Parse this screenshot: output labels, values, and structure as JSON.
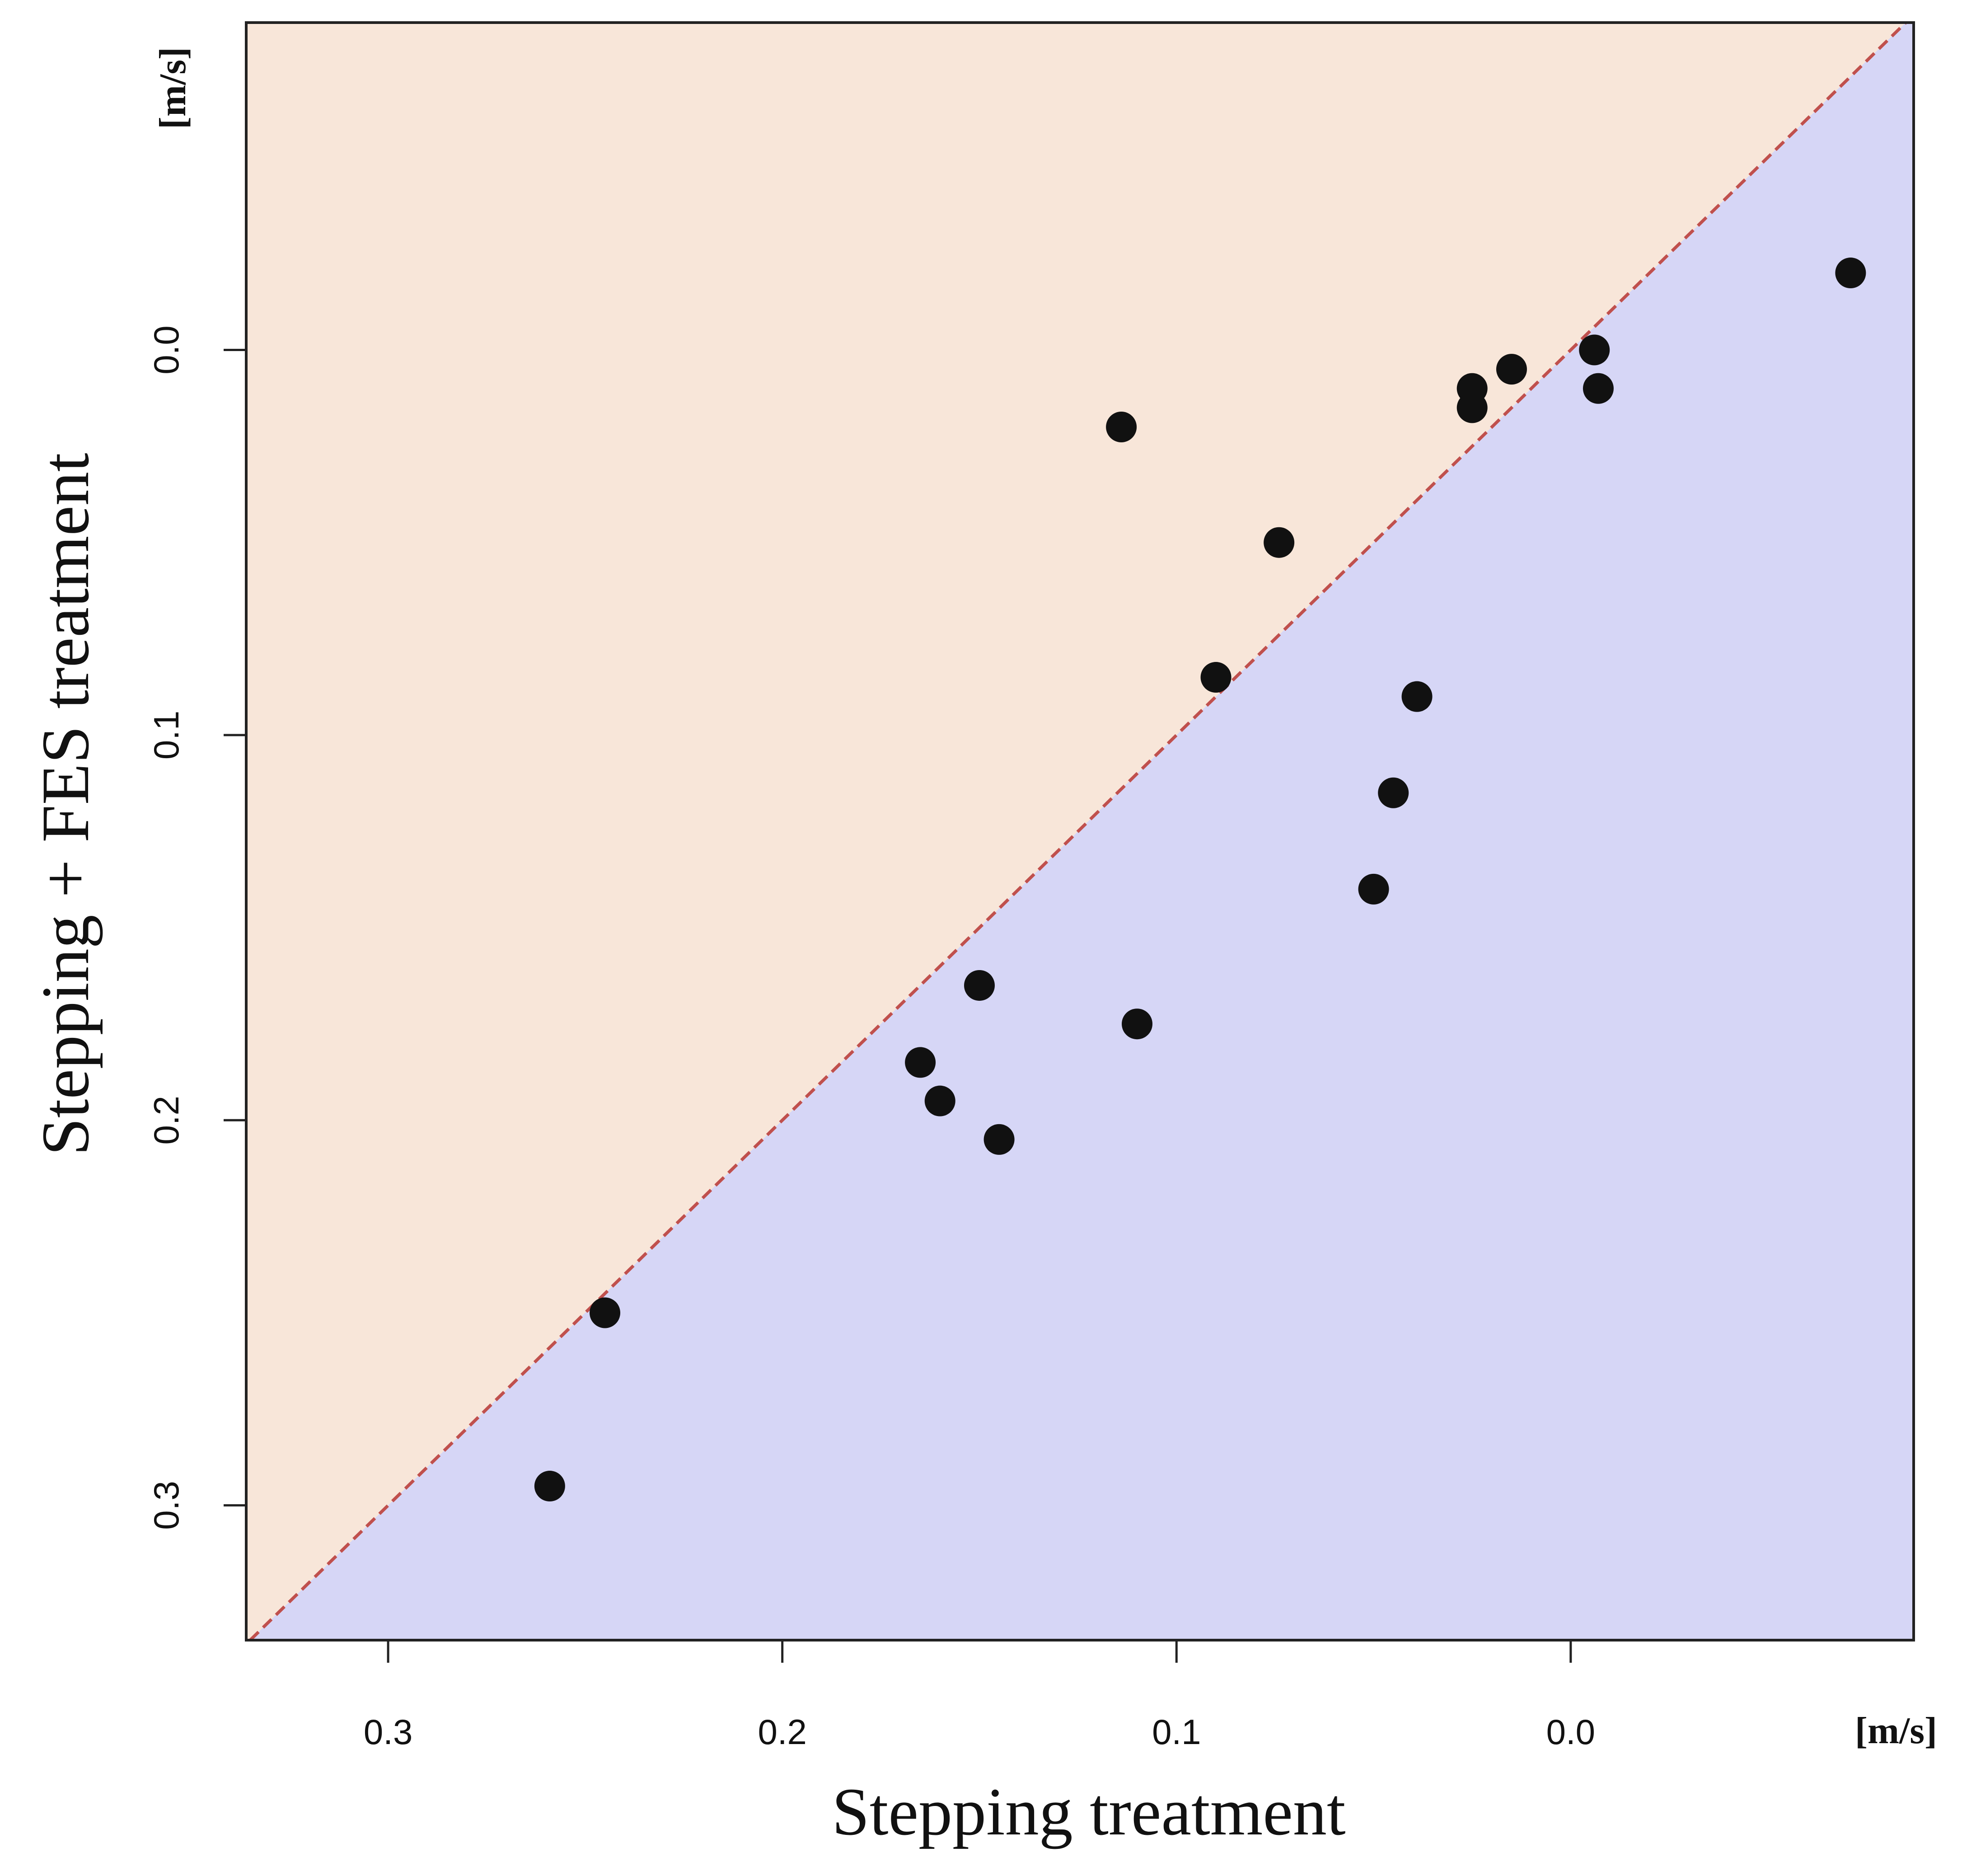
{
  "chart_data": {
    "type": "scatter",
    "title": "",
    "xlabel": "Stepping treatment",
    "ylabel": "Stepping + FES treatment",
    "x_unit_label": "[m/s]",
    "y_unit_label": "[m/s]",
    "xlim": [
      0.336,
      -0.087
    ],
    "ylim": [
      0.335,
      -0.085
    ],
    "x_reversed": true,
    "y_reversed": true,
    "xticks": [
      0.3,
      0.2,
      0.1,
      0.0
    ],
    "yticks": [
      0.0,
      0.1,
      0.2,
      0.3
    ],
    "tick_labels": [
      "0.3",
      "0.2",
      "0.1",
      "0.0"
    ],
    "reference_line": {
      "type": "identity",
      "style": "dashed",
      "color": "#c0504d"
    },
    "regions": [
      {
        "name": "above-identity",
        "color": "#f8e6d9"
      },
      {
        "name": "below-identity",
        "color": "#d6d6f6"
      }
    ],
    "point_color": "#111111",
    "grid": false,
    "legend": "none",
    "points": [
      {
        "x": 0.259,
        "y": 0.295
      },
      {
        "x": 0.245,
        "y": 0.25
      },
      {
        "x": 0.165,
        "y": 0.185
      },
      {
        "x": 0.16,
        "y": 0.195
      },
      {
        "x": 0.15,
        "y": 0.165
      },
      {
        "x": 0.145,
        "y": 0.205
      },
      {
        "x": 0.114,
        "y": 0.02
      },
      {
        "x": 0.11,
        "y": 0.175
      },
      {
        "x": 0.09,
        "y": 0.085
      },
      {
        "x": 0.074,
        "y": 0.05
      },
      {
        "x": 0.05,
        "y": 0.14
      },
      {
        "x": 0.045,
        "y": 0.115
      },
      {
        "x": 0.039,
        "y": 0.09
      },
      {
        "x": 0.025,
        "y": 0.015
      },
      {
        "x": 0.025,
        "y": 0.01
      },
      {
        "x": 0.015,
        "y": 0.005
      },
      {
        "x": -0.006,
        "y": 0.0
      },
      {
        "x": -0.007,
        "y": 0.01
      },
      {
        "x": -0.071,
        "y": -0.02
      }
    ]
  }
}
